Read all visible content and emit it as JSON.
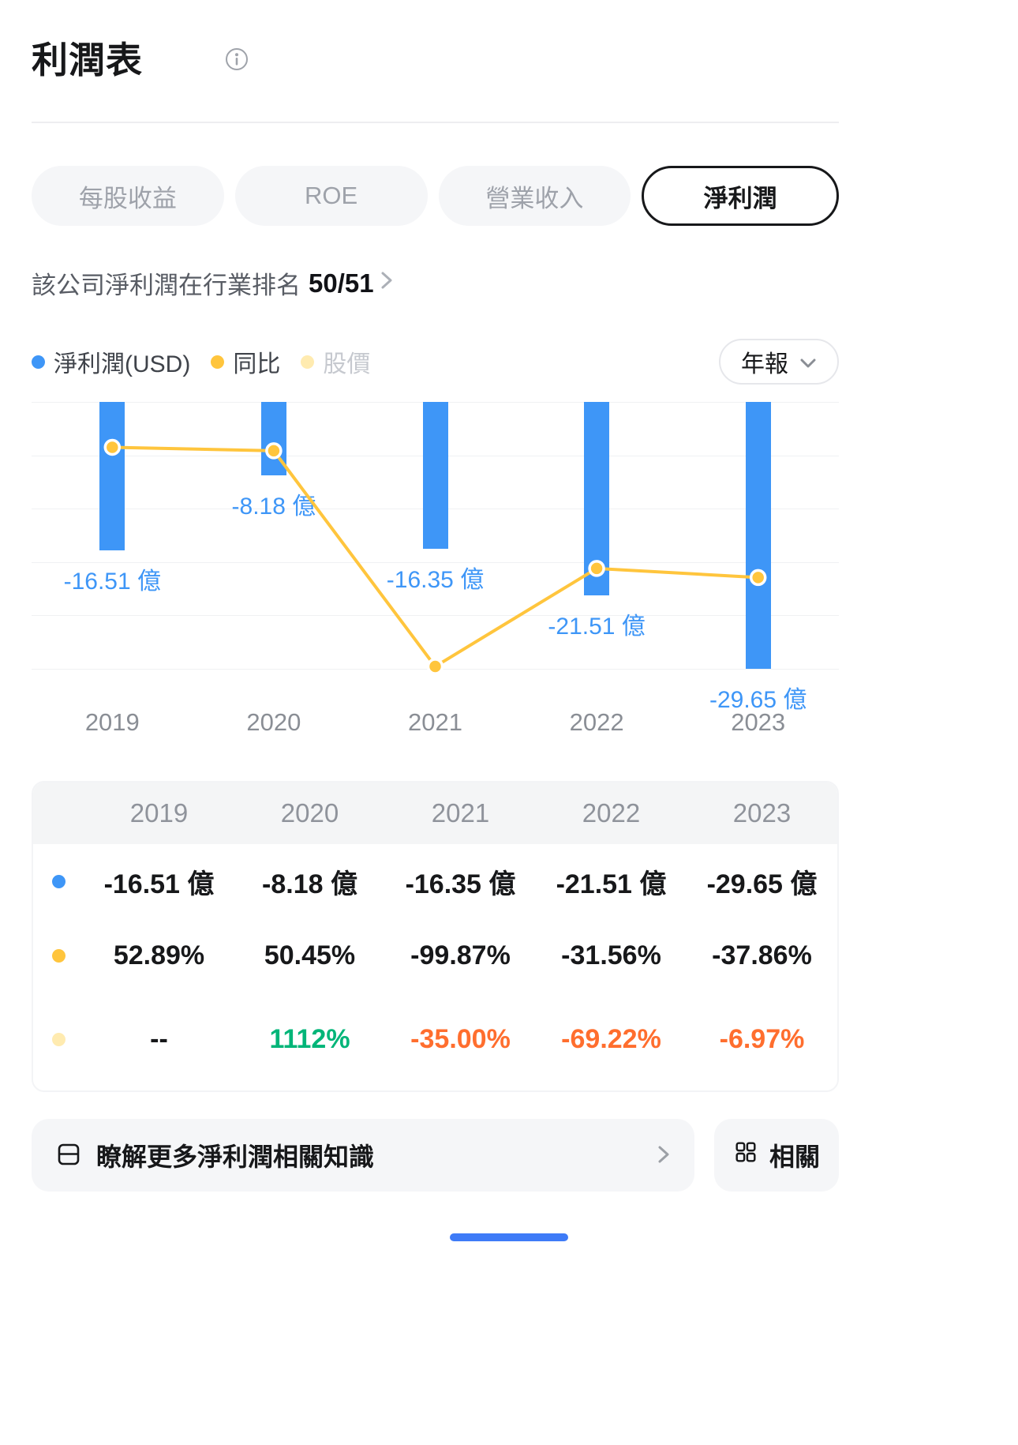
{
  "header": {
    "title": "利潤表"
  },
  "tabs": [
    {
      "label": "每股收益",
      "active": false
    },
    {
      "label": "ROE",
      "active": false
    },
    {
      "label": "營業收入",
      "active": false
    },
    {
      "label": "淨利潤",
      "active": true
    }
  ],
  "ranking": {
    "prefix": "該公司淨利潤在行業排名",
    "value": "50/51"
  },
  "controls": {
    "period_selector": "年報"
  },
  "legend": [
    {
      "label": "淨利潤(USD)",
      "color": "#3E96F7",
      "dimmed": false
    },
    {
      "label": "同比",
      "color": "#FFC53D",
      "dimmed": false
    },
    {
      "label": "股價",
      "color": "#FFEBB0",
      "dimmed": true
    }
  ],
  "chart_data": {
    "type": "bar",
    "categories": [
      "2019",
      "2020",
      "2021",
      "2022",
      "2023"
    ],
    "series": [
      {
        "name": "淨利潤(USD)",
        "type": "bar",
        "unit": "億",
        "values": [
          -16.51,
          -8.18,
          -16.35,
          -21.51,
          -29.65
        ],
        "labels": [
          "-16.51 億",
          "-8.18 億",
          "-16.35 億",
          "-21.51 億",
          "-29.65 億"
        ],
        "color": "#3E96F7",
        "axis_range": [
          -29.65,
          0
        ]
      },
      {
        "name": "同比",
        "type": "line",
        "unit": "%",
        "values": [
          52.89,
          50.45,
          -99.87,
          -31.56,
          -37.86
        ],
        "color": "#FFC53D",
        "axis_range": [
          -101.5,
          84.5
        ]
      }
    ],
    "grid": true,
    "gridlines": 6,
    "legend_position": "top-left",
    "baseline": "zero-at-top (all bar values negative)"
  },
  "table": {
    "header": [
      "2019",
      "2020",
      "2021",
      "2022",
      "2023"
    ],
    "rows": [
      {
        "name": "淨利潤(USD)",
        "dot_color": "#3E96F7",
        "cells": [
          {
            "text": "-16.51 億"
          },
          {
            "text": "-8.18 億"
          },
          {
            "text": "-16.35 億"
          },
          {
            "text": "-21.51 億"
          },
          {
            "text": "-29.65 億"
          }
        ]
      },
      {
        "name": "同比",
        "dot_color": "#FFC53D",
        "cells": [
          {
            "text": "52.89%"
          },
          {
            "text": "50.45%"
          },
          {
            "text": "-99.87%"
          },
          {
            "text": "-31.56%"
          },
          {
            "text": "-37.86%"
          }
        ]
      },
      {
        "name": "股價",
        "dot_color": "#FFEBB0",
        "cells": [
          {
            "text": "--"
          },
          {
            "text": "1112%",
            "color": "#00B578"
          },
          {
            "text": "-35.00%",
            "color": "#FF6E2E"
          },
          {
            "text": "-69.22%",
            "color": "#FF6E2E"
          },
          {
            "text": "-6.97%",
            "color": "#FF6E2E"
          }
        ]
      }
    ]
  },
  "actions": {
    "learn_more": "瞭解更多淨利潤相關知識",
    "related": "相關"
  },
  "icons": {
    "title_info": "info-icon",
    "ranking_trailing": "chevron-right-icon",
    "period_trailing": "chevron-down-icon",
    "learn_more_leading": "book-icon",
    "learn_more_trailing": "chevron-right-icon",
    "related_leading": "grid-icon"
  },
  "colors": {
    "bar_blue": "#3E96F7",
    "line_yellow": "#FFC53D",
    "dimmed_yellow": "#FFEBB0",
    "positive_green": "#00B578",
    "negative_orange": "#FF6E2E",
    "home_indicator_blue": "#3E7BF7"
  }
}
